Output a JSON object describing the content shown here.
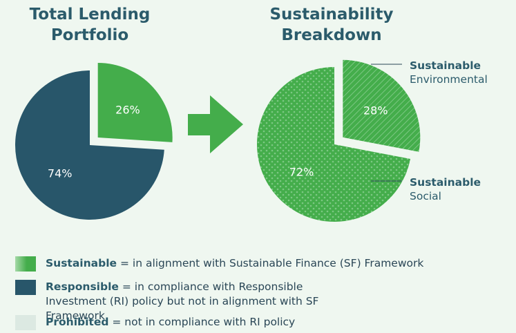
{
  "chart_data": [
    {
      "type": "pie",
      "title": "Total Lending Portfolio",
      "values": [
        26,
        74
      ],
      "value_labels": [
        "26%",
        "74%"
      ],
      "colors": [
        "#44ad4b",
        "#28566a"
      ]
    },
    {
      "type": "pie",
      "title": "Sustainability Breakdown",
      "categories": [
        [
          "Sustainable",
          "Environmental"
        ],
        [
          "Sustainable",
          "Social"
        ]
      ],
      "values": [
        28,
        72
      ],
      "value_labels": [
        "28%",
        "72%"
      ],
      "colors": [
        "#44ad4b",
        "#44ad4b"
      ],
      "patterns": [
        "stripes",
        "dots"
      ]
    }
  ],
  "legend": [
    {
      "term": "Sustainable",
      "definition": "= in alignment with Sustainable Finance (SF) Framework",
      "color": "#44ad4b"
    },
    {
      "term": "Responsible",
      "definition": "= in compliance with Responsible Investment (RI) policy but not in alignment with SF Framework",
      "color": "#28566a"
    },
    {
      "term": "Prohibited",
      "definition": "= not in compliance with RI policy",
      "color": "#dce9e2"
    }
  ]
}
